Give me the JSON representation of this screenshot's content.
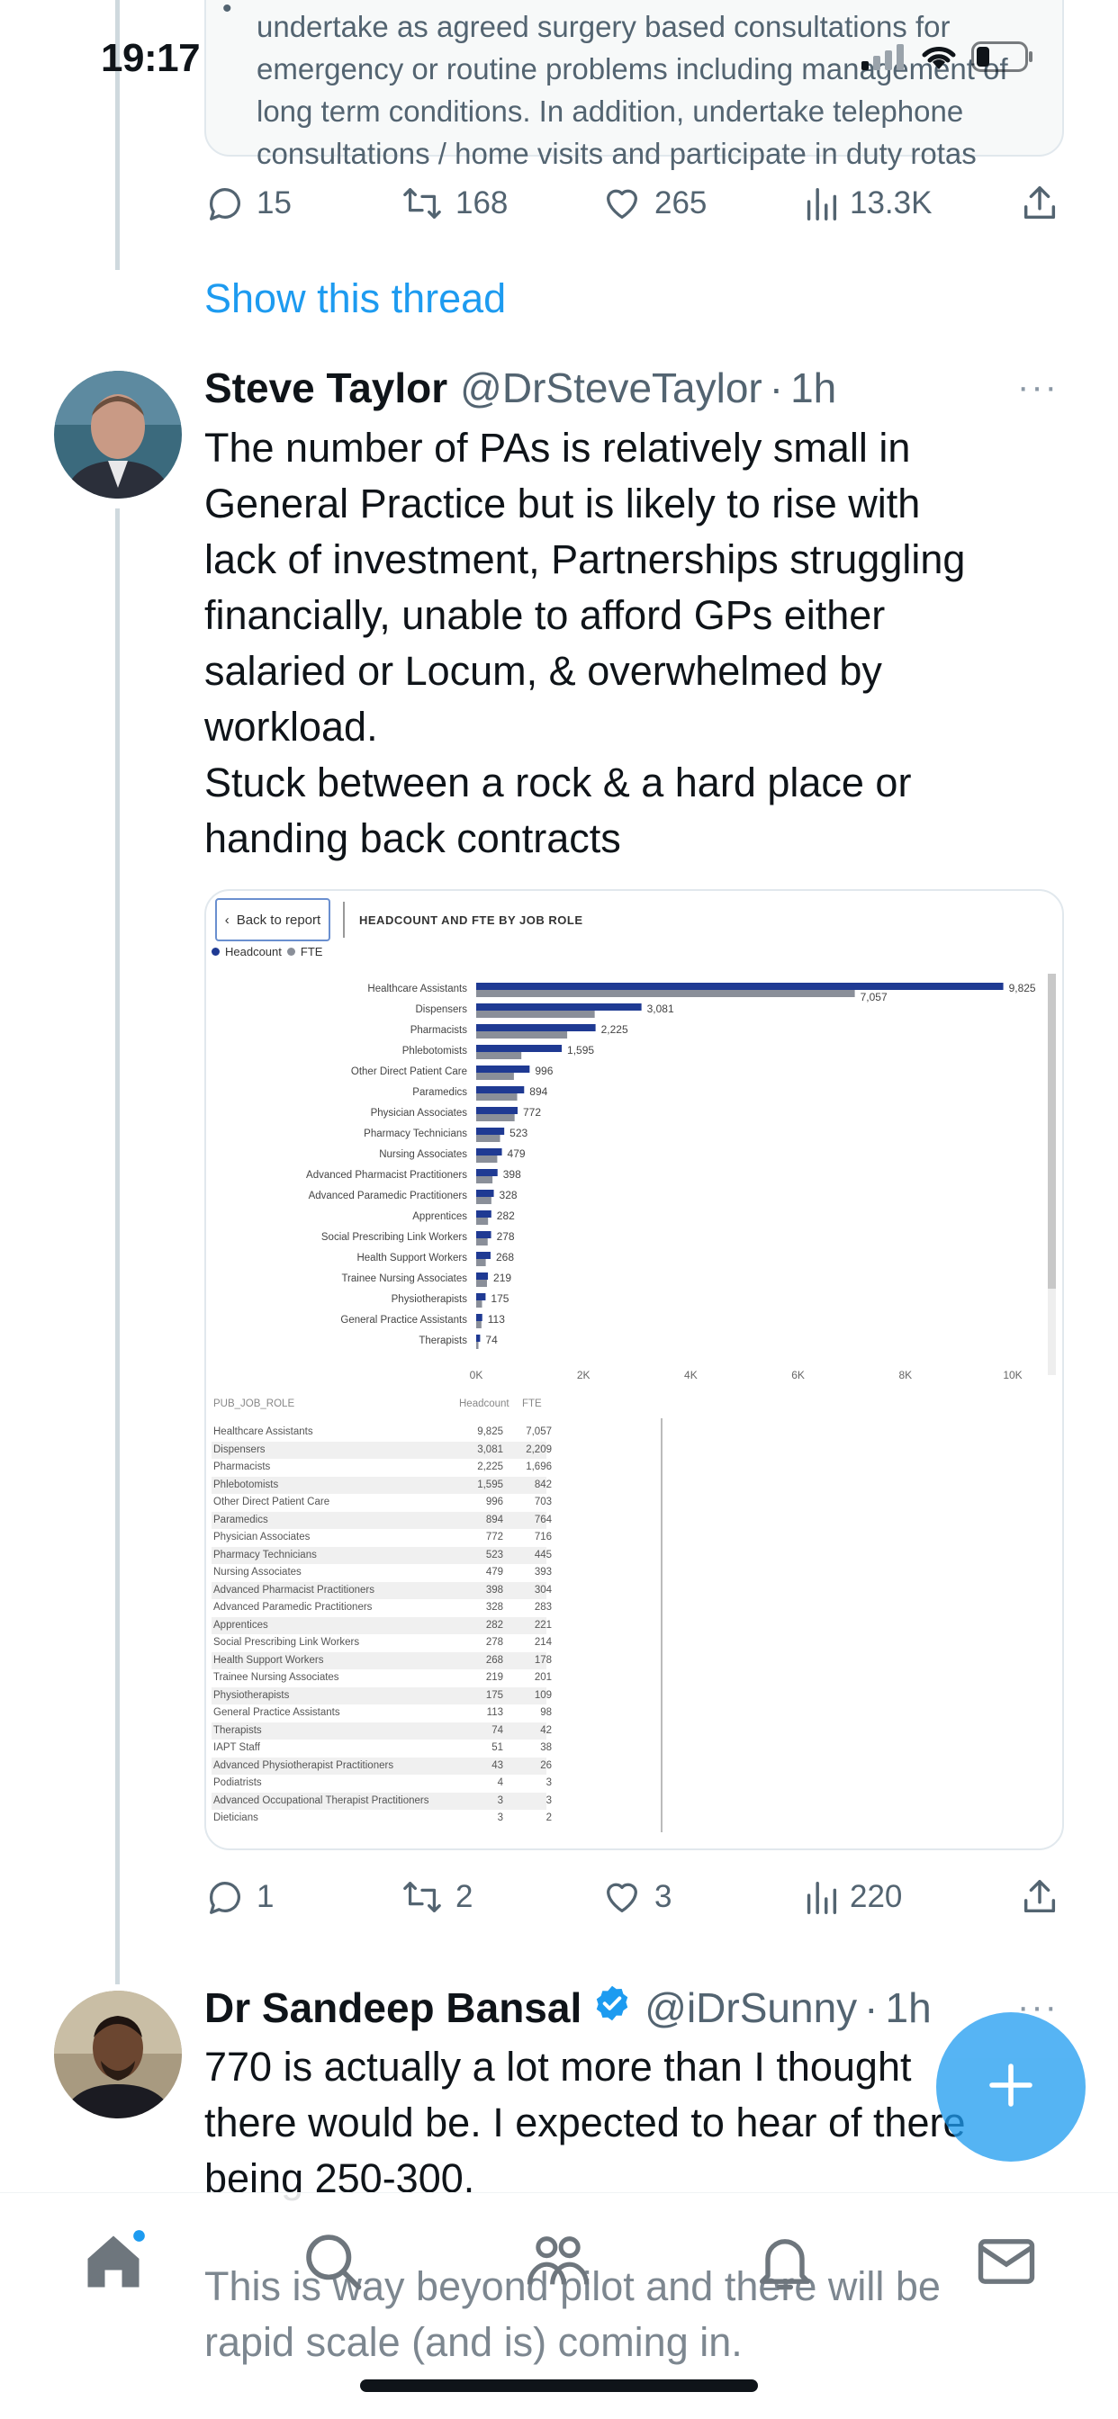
{
  "status_bar": {
    "time": "19:17"
  },
  "quoted_card": {
    "lines": [
      "undertake as agreed surgery based consultations for",
      "emergency or routine problems including management of",
      "long term conditions. In addition, undertake telephone",
      "consultations / home visits and participate in duty rotas"
    ]
  },
  "first_tweet_actions": {
    "replies": "15",
    "reposts": "168",
    "likes": "265",
    "views": "13.3K"
  },
  "show_thread": "Show this thread",
  "tweet1": {
    "name": "Steve Taylor",
    "handle": "@DrSteveTaylor",
    "separator": "·",
    "time": "1h",
    "more": "···",
    "text_lines": [
      "The number of PAs is relatively small in",
      "General Practice but is likely to rise with",
      "lack of investment, Partnerships struggling",
      "financially, unable to afford GPs either",
      "salaried or Locum, & overwhelmed by",
      "workload.",
      "Stuck between a rock & a hard place or",
      "handing back contracts"
    ],
    "actions": {
      "replies": "1",
      "reposts": "2",
      "likes": "3",
      "views": "220"
    }
  },
  "report": {
    "back_label": "Back to report",
    "title": "HEADCOUNT AND FTE BY JOB ROLE",
    "legend_headcount": "Headcount",
    "legend_fte": "FTE",
    "table_headers": {
      "role": "PUB_JOB_ROLE",
      "headcount": "Headcount",
      "fte": "FTE"
    },
    "table_rows": [
      [
        "Healthcare Assistants",
        "9,825",
        "7,057"
      ],
      [
        "Dispensers",
        "3,081",
        "2,209"
      ],
      [
        "Pharmacists",
        "2,225",
        "1,696"
      ],
      [
        "Phlebotomists",
        "1,595",
        "842"
      ],
      [
        "Other Direct Patient Care",
        "996",
        "703"
      ],
      [
        "Paramedics",
        "894",
        "764"
      ],
      [
        "Physician Associates",
        "772",
        "716"
      ],
      [
        "Pharmacy Technicians",
        "523",
        "445"
      ],
      [
        "Nursing Associates",
        "479",
        "393"
      ],
      [
        "Advanced Pharmacist Practitioners",
        "398",
        "304"
      ],
      [
        "Advanced Paramedic Practitioners",
        "328",
        "283"
      ],
      [
        "Apprentices",
        "282",
        "221"
      ],
      [
        "Social Prescribing Link Workers",
        "278",
        "214"
      ],
      [
        "Health Support Workers",
        "268",
        "178"
      ],
      [
        "Trainee Nursing Associates",
        "219",
        "201"
      ],
      [
        "Physiotherapists",
        "175",
        "109"
      ],
      [
        "General Practice Assistants",
        "113",
        "98"
      ],
      [
        "Therapists",
        "74",
        "42"
      ],
      [
        "IAPT Staff",
        "51",
        "38"
      ],
      [
        "Advanced Physiotherapist Practitioners",
        "43",
        "26"
      ],
      [
        "Podiatrists",
        "4",
        "3"
      ],
      [
        "Advanced Occupational Therapist Practitioners",
        "3",
        "3"
      ],
      [
        "Dieticians",
        "3",
        "2"
      ]
    ]
  },
  "chart_data": {
    "type": "bar",
    "orientation": "horizontal",
    "title": "HEADCOUNT AND FTE BY JOB ROLE",
    "categories": [
      "Healthcare Assistants",
      "Dispensers",
      "Pharmacists",
      "Phlebotomists",
      "Other Direct Patient Care",
      "Paramedics",
      "Physician Associates",
      "Pharmacy Technicians",
      "Nursing Associates",
      "Advanced Pharmacist Practitioners",
      "Advanced Paramedic Practitioners",
      "Apprentices",
      "Social Prescribing Link Workers",
      "Health Support Workers",
      "Trainee Nursing Associates",
      "Physiotherapists",
      "General Practice Assistants",
      "Therapists"
    ],
    "series": [
      {
        "name": "Headcount",
        "color": "#1f3a93",
        "values": [
          9825,
          3081,
          2225,
          1595,
          996,
          894,
          772,
          523,
          479,
          398,
          328,
          282,
          278,
          268,
          219,
          175,
          113,
          74
        ]
      },
      {
        "name": "FTE",
        "color": "#8a8f99",
        "values": [
          7057,
          2209,
          1696,
          842,
          703,
          764,
          716,
          445,
          393,
          304,
          283,
          221,
          214,
          178,
          201,
          109,
          98,
          42
        ]
      }
    ],
    "data_labels": [
      "9,825",
      "3,081",
      "2,225",
      "1,595",
      "996",
      "894",
      "772",
      "523",
      "479",
      "398",
      "328",
      "282",
      "278",
      "268",
      "219",
      "175",
      "113",
      "74"
    ],
    "fte_label_first": "7,057",
    "x_ticks": [
      "0K",
      "2K",
      "4K",
      "6K",
      "8K",
      "10K"
    ],
    "xlim": [
      0,
      10000
    ],
    "legend": "top-left",
    "grid": false
  },
  "tweet2": {
    "name": "Dr Sandeep Bansal",
    "handle": "@iDrSunny",
    "separator": "·",
    "time": "1h",
    "more": "···",
    "text_lines": [
      "770 is actually a lot more than I thought",
      "there would be. I expected to hear of there",
      "being 250-300."
    ],
    "faded_lines": [
      "This is way beyond pilot and there will be",
      "rapid scale (and is) coming in."
    ]
  },
  "colors": {
    "accent": "#1d9bf0",
    "text": "#0f1419",
    "muted": "#536471",
    "verified": "#1d9bf0"
  }
}
